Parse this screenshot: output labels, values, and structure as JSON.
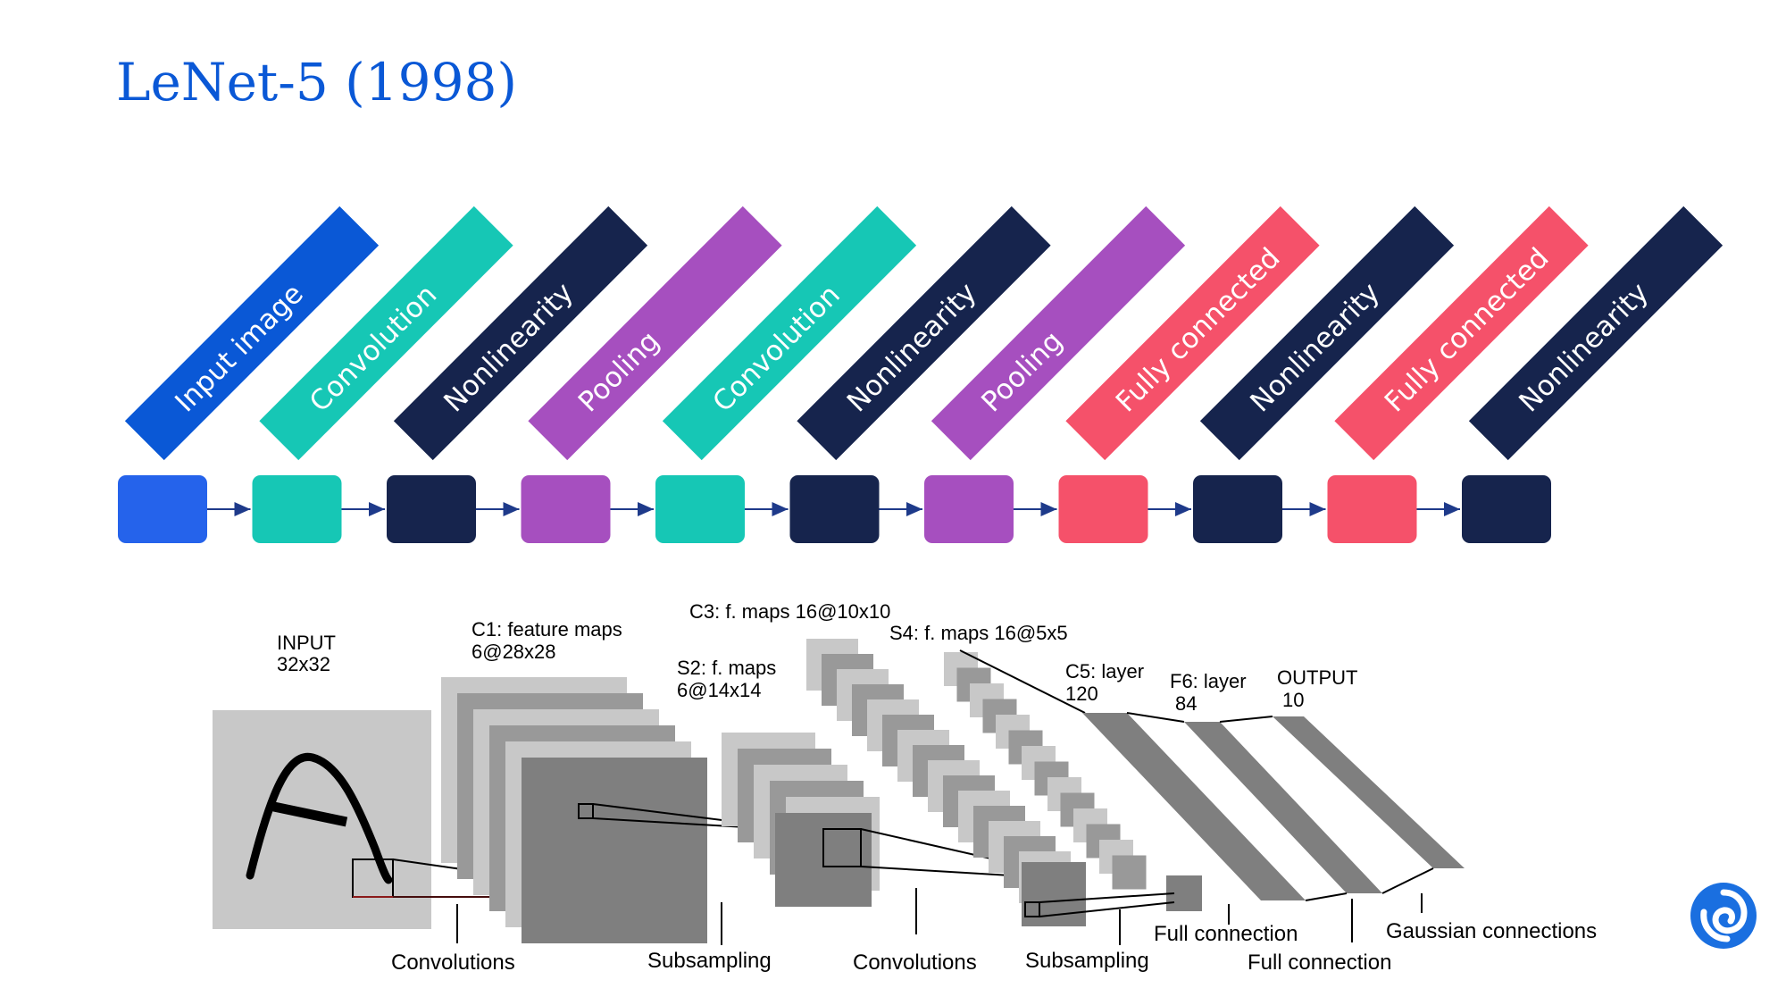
{
  "title": "LeNet-5 (1998)",
  "pipeline": [
    {
      "label": "Input image",
      "color": "#0a58d6",
      "box": "#2563eb",
      "text_color": "#ffffff"
    },
    {
      "label": "Convolution",
      "color": "#16c7b5",
      "box": "#16c7b5",
      "text_color": "#ffffff"
    },
    {
      "label": "Nonlinearity",
      "color": "#16244d",
      "box": "#16244d",
      "text_color": "#ffffff"
    },
    {
      "label": "Pooling",
      "color": "#a64fbf",
      "box": "#a64fbf",
      "text_color": "#ffffff"
    },
    {
      "label": "Convolution",
      "color": "#16c7b5",
      "box": "#16c7b5",
      "text_color": "#ffffff"
    },
    {
      "label": "Nonlinearity",
      "color": "#16244d",
      "box": "#16244d",
      "text_color": "#ffffff"
    },
    {
      "label": "Pooling",
      "color": "#a64fbf",
      "box": "#a64fbf",
      "text_color": "#ffffff"
    },
    {
      "label": "Fully connected",
      "color": "#f5516a",
      "box": "#f5516a",
      "text_color": "#ffffff"
    },
    {
      "label": "Nonlinearity",
      "color": "#16244d",
      "box": "#16244d",
      "text_color": "#ffffff"
    },
    {
      "label": "Fully connected",
      "color": "#f5516a",
      "box": "#f5516a",
      "text_color": "#ffffff"
    },
    {
      "label": "Nonlinearity",
      "color": "#16244d",
      "box": "#16244d",
      "text_color": "#ffffff"
    }
  ],
  "diagram": {
    "input_label": "INPUT",
    "input_size": "32x32",
    "c1_label": "C1: feature maps",
    "c1_size": "6@28x28",
    "s2_label": "S2: f. maps",
    "s2_size": "6@14x14",
    "c3_label": "C3: f. maps 16@10x10",
    "s4_label": "S4: f. maps 16@5x5",
    "c5_label": "C5: layer",
    "c5_size": "120",
    "f6_label": "F6: layer",
    "f6_size": "84",
    "output_label": "OUTPUT",
    "output_size": "10",
    "op_convolutions_1": "Convolutions",
    "op_subsampling_1": "Subsampling",
    "op_convolutions_2": "Convolutions",
    "op_subsampling_2": "Subsampling",
    "op_full_connection_1": "Full connection",
    "op_full_connection_2": "Full connection",
    "op_gaussian": "Gaussian connections"
  },
  "colors": {
    "title": "#0a58d6",
    "arrow": "#1e3a8a",
    "logo": "#1a6fe0",
    "map_light": "#c8c8c8",
    "map_mid": "#a8a8a8",
    "map_dark": "#7f7f7f"
  }
}
